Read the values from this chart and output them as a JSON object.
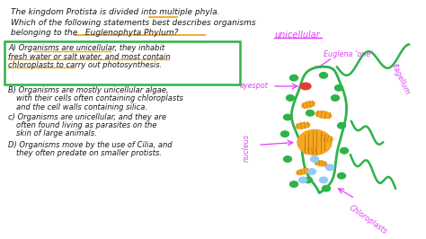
{
  "bg_color": "#ffffff",
  "text_color": "#1a1a1a",
  "magenta_color": "#e040fb",
  "green_color": "#2db34a",
  "orange_color": "#f5a623",
  "cell_fill": "#e8f5e9",
  "nucleus_color": "#f5a623",
  "chloroplast_color": "#2db34a",
  "eyespot_color": "#e53935",
  "orange_body_color": "#f5a623",
  "blue_fill": "#bbdefb",
  "title_line1": "The kingdom Protista is divided into multiple phyla.",
  "title_line2": "Which of the following statements best describes organisms",
  "title_line3": "belonging to the   Euglenophyta Phylum?",
  "unicellular_label": "unicellular",
  "euglena_label": "Euglena ‘one’",
  "eyespot_label": "eyespot",
  "flagellum_label": "flagellum",
  "nucleus_label": "nucleus",
  "chloroplasts_label": "Chloroplasts",
  "ans_a": "A) Organisms are unicellular, they inhabit\nfresh water or salt water, and most contain\ncnloroplasts to carry out photosynthesis.",
  "ans_b": "B) Organisms are mostly unicellular algae,\n   with their cells often containing chloroplasts\n   and the cell walls containing silica.",
  "ans_c": "c) Organisms are unicellular, and they are\n   often found living as parasites on the\n   skin of large animals.",
  "ans_d": "D) Organisms move by the use of Cilia, and\n   they often predate on smaller protists."
}
